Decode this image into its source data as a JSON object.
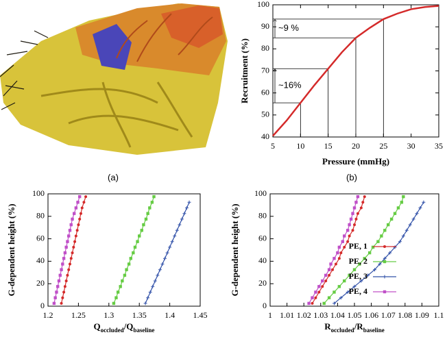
{
  "figure": {
    "captions": [
      "(a)",
      "(b)"
    ]
  },
  "chart_data": [
    {
      "type": "line",
      "xlabel": "Pressure (mmHg)",
      "ylabel": "Recruitment (%)",
      "x": [
        5,
        7.5,
        10,
        12.5,
        15,
        17.5,
        20,
        22.5,
        25,
        27.5,
        30,
        32.5,
        35
      ],
      "series": [
        {
          "color": "#d42a2a",
          "values": [
            40.5,
            47.5,
            55.5,
            63.5,
            71,
            78.5,
            85,
            89.5,
            93.5,
            96,
            98,
            99,
            99.5
          ]
        }
      ],
      "xlim": [
        5,
        35
      ],
      "ylim": [
        40,
        100
      ],
      "xticks": [
        5,
        10,
        15,
        20,
        25,
        30,
        35
      ],
      "yticks": [
        40,
        50,
        60,
        70,
        80,
        90,
        100
      ],
      "guides": [
        {
          "x": 10,
          "y": 55.5
        },
        {
          "x": 15,
          "y": 71
        },
        {
          "x": 20,
          "y": 85
        },
        {
          "x": 25,
          "y": 93.5
        }
      ],
      "annotations": [
        {
          "text": "~16%",
          "from": 55.5,
          "to": 71
        },
        {
          "text": "~9 %",
          "from": 85,
          "to": 93.5
        }
      ]
    },
    {
      "type": "line",
      "xlabel": [
        "Q",
        "occluded",
        "/Q",
        "baseline"
      ],
      "ylabel": "G-dependent height (%)",
      "y": [
        2.5,
        7.5,
        12.5,
        17.5,
        22.5,
        27.5,
        32.5,
        37.5,
        42.5,
        47.5,
        52.5,
        57.5,
        62.5,
        67.5,
        72.5,
        77.5,
        82.5,
        87.5,
        92.5,
        97.5
      ],
      "series": [
        {
          "color": "#d42a2a",
          "marker": "circle",
          "values": [
            1.222,
            1.224,
            1.226,
            1.228,
            1.23,
            1.232,
            1.234,
            1.236,
            1.238,
            1.24,
            1.242,
            1.244,
            1.246,
            1.248,
            1.25,
            1.252,
            1.254,
            1.256,
            1.259,
            1.262
          ]
        },
        {
          "color": "#66cc44",
          "marker": "square",
          "values": [
            1.308,
            1.312,
            1.315,
            1.319,
            1.322,
            1.326,
            1.329,
            1.333,
            1.336,
            1.34,
            1.343,
            1.347,
            1.35,
            1.354,
            1.357,
            1.361,
            1.364,
            1.367,
            1.371,
            1.374
          ]
        },
        {
          "color": "#3050a8",
          "marker": "plus",
          "values": [
            1.36,
            1.364,
            1.368,
            1.372,
            1.376,
            1.38,
            1.384,
            1.388,
            1.392,
            1.396,
            1.4,
            1.404,
            1.408,
            1.412,
            1.416,
            1.42,
            1.424,
            1.428,
            1.432,
            null
          ]
        },
        {
          "color": "#c050c8",
          "marker": "square",
          "values": [
            1.21,
            1.212,
            1.214,
            1.216,
            1.218,
            1.22,
            1.222,
            1.224,
            1.226,
            1.228,
            1.23,
            1.232,
            1.234,
            1.236,
            1.238,
            1.24,
            1.243,
            1.246,
            1.249,
            1.252
          ]
        }
      ],
      "xlim": [
        1.2,
        1.45
      ],
      "ylim": [
        0,
        100
      ],
      "xticks": [
        1.2,
        1.25,
        1.3,
        1.35,
        1.4,
        1.45
      ],
      "yticks": [
        0,
        20,
        40,
        60,
        80,
        100
      ]
    },
    {
      "type": "line",
      "xlabel": [
        "R",
        "occluded",
        "/R",
        "baseline"
      ],
      "ylabel": "G-dependent height (%)",
      "y": [
        2.5,
        7.5,
        12.5,
        17.5,
        22.5,
        27.5,
        32.5,
        37.5,
        42.5,
        47.5,
        52.5,
        57.5,
        62.5,
        67.5,
        72.5,
        77.5,
        82.5,
        87.5,
        92.5,
        97.5
      ],
      "series": [
        {
          "name": "PE, 1",
          "color": "#d42a2a",
          "marker": "circle",
          "values": [
            1.025,
            1.027,
            1.029,
            1.031,
            1.033,
            1.035,
            1.037,
            1.039,
            1.041,
            1.042,
            1.044,
            1.046,
            1.047,
            1.049,
            1.05,
            1.051,
            1.052,
            1.054,
            1.055,
            1.056
          ]
        },
        {
          "name": "PE, 2",
          "color": "#66cc44",
          "marker": "square",
          "values": [
            1.032,
            1.035,
            1.038,
            1.041,
            1.044,
            1.047,
            1.05,
            1.053,
            1.056,
            1.059,
            1.061,
            1.064,
            1.066,
            1.068,
            1.07,
            1.072,
            1.074,
            1.076,
            1.078,
            1.079
          ]
        },
        {
          "name": "PE, 3",
          "color": "#3050a8",
          "marker": "plus",
          "values": [
            1.038,
            1.042,
            1.046,
            1.05,
            1.054,
            1.058,
            1.062,
            1.065,
            1.068,
            1.071,
            1.074,
            1.077,
            1.079,
            1.081,
            1.083,
            1.085,
            1.087,
            1.089,
            1.091,
            null
          ]
        },
        {
          "name": "PE, 4",
          "color": "#c050c8",
          "marker": "square",
          "values": [
            1.023,
            1.025,
            1.027,
            1.029,
            1.031,
            1.033,
            1.035,
            1.036,
            1.038,
            1.04,
            1.041,
            1.043,
            1.044,
            1.046,
            1.047,
            1.048,
            1.049,
            1.05,
            1.051,
            1.052
          ]
        }
      ],
      "xlim": [
        1,
        1.1
      ],
      "ylim": [
        0,
        100
      ],
      "xticks": [
        1,
        1.01,
        1.02,
        1.03,
        1.04,
        1.05,
        1.06,
        1.07,
        1.08,
        1.09,
        1.1
      ],
      "yticks": [
        0,
        20,
        40,
        60,
        80,
        100
      ],
      "legend": "lower right"
    }
  ]
}
